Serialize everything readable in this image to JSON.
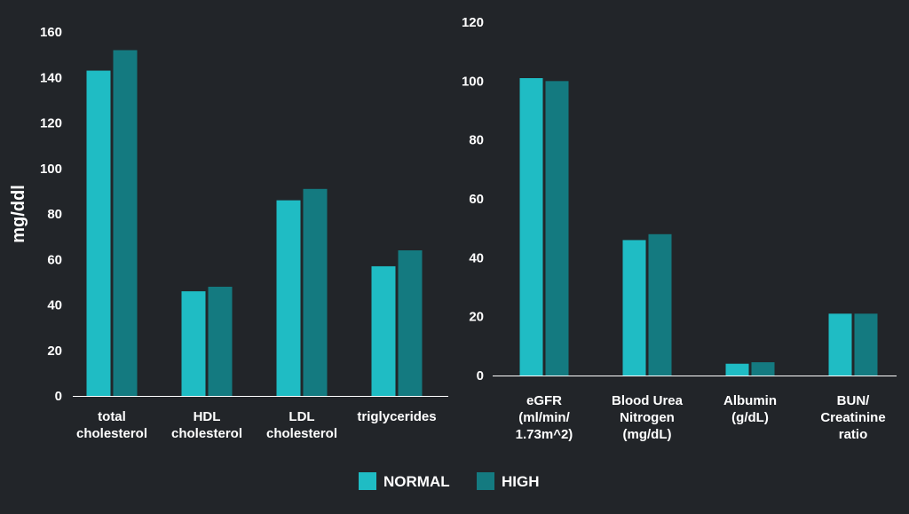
{
  "colors": {
    "background": "#222529",
    "normal": "#1fbcc4",
    "high": "#147a80",
    "axis": "#ffffff"
  },
  "legend": [
    {
      "name": "NORMAL",
      "color": "#1fbcc4"
    },
    {
      "name": "HIGH",
      "color": "#147a80"
    }
  ],
  "chart_data": [
    {
      "type": "bar",
      "ylabel": "mg/ddl",
      "ylim": [
        0,
        160
      ],
      "yticks": [
        0,
        20,
        40,
        60,
        80,
        100,
        120,
        140,
        160
      ],
      "categories": [
        [
          "total",
          "cholesterol"
        ],
        [
          "HDL",
          "cholesterol"
        ],
        [
          "LDL",
          "cholesterol"
        ],
        [
          "triglycerides"
        ]
      ],
      "series": [
        {
          "name": "NORMAL",
          "values": [
            143,
            46,
            86,
            57
          ]
        },
        {
          "name": "HIGH",
          "values": [
            152,
            48,
            91,
            64
          ]
        }
      ],
      "grid": false
    },
    {
      "type": "bar",
      "ylabel": "",
      "ylim": [
        0,
        120
      ],
      "yticks": [
        0,
        20,
        40,
        60,
        80,
        100,
        120
      ],
      "categories": [
        [
          "eGFR",
          "(ml/min/",
          "1.73m^2)"
        ],
        [
          "Blood Urea",
          "Nitrogen",
          "(mg/dL)"
        ],
        [
          "Albumin",
          "(g/dL)"
        ],
        [
          "BUN/",
          "Creatinine",
          "ratio"
        ]
      ],
      "series": [
        {
          "name": "NORMAL",
          "values": [
            101,
            46,
            4,
            21
          ]
        },
        {
          "name": "HIGH",
          "values": [
            100,
            48,
            4.5,
            21
          ]
        }
      ],
      "grid": false
    }
  ]
}
